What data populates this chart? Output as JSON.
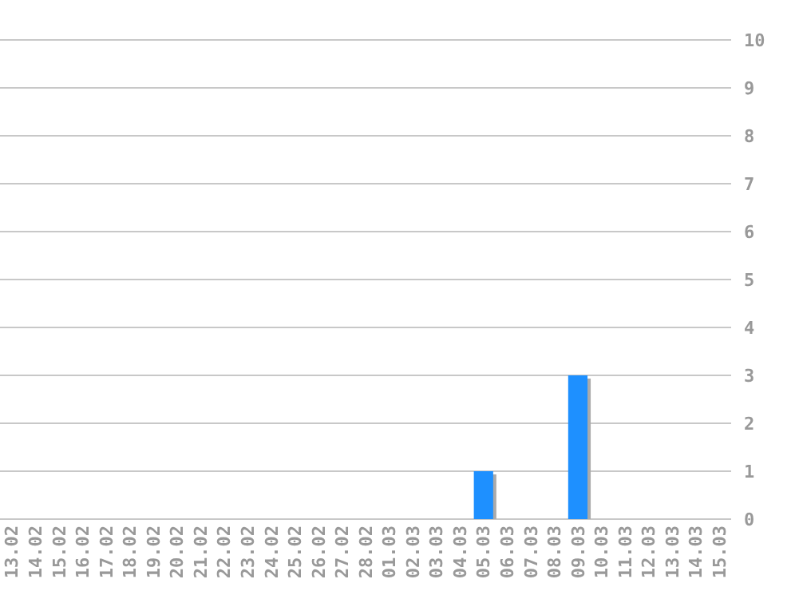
{
  "chart_data": {
    "type": "bar",
    "categories": [
      "13.02",
      "14.02",
      "15.02",
      "16.02",
      "17.02",
      "18.02",
      "19.02",
      "20.02",
      "21.02",
      "22.02",
      "23.02",
      "24.02",
      "25.02",
      "26.02",
      "27.02",
      "28.02",
      "01.03",
      "02.03",
      "03.03",
      "04.03",
      "05.03",
      "06.03",
      "07.03",
      "08.03",
      "09.03",
      "10.03",
      "11.03",
      "12.03",
      "13.03",
      "14.03",
      "15.03"
    ],
    "values": [
      0,
      0,
      0,
      0,
      0,
      0,
      0,
      0,
      0,
      0,
      0,
      0,
      0,
      0,
      0,
      0,
      0,
      0,
      0,
      0,
      1,
      0,
      0,
      0,
      3,
      0,
      0,
      0,
      0,
      0,
      0
    ],
    "color": "#1e90ff",
    "ylim": [
      0,
      10
    ],
    "yticks": [
      0,
      1,
      2,
      3,
      4,
      5,
      6,
      7,
      8,
      9,
      10
    ],
    "grid": "y"
  }
}
